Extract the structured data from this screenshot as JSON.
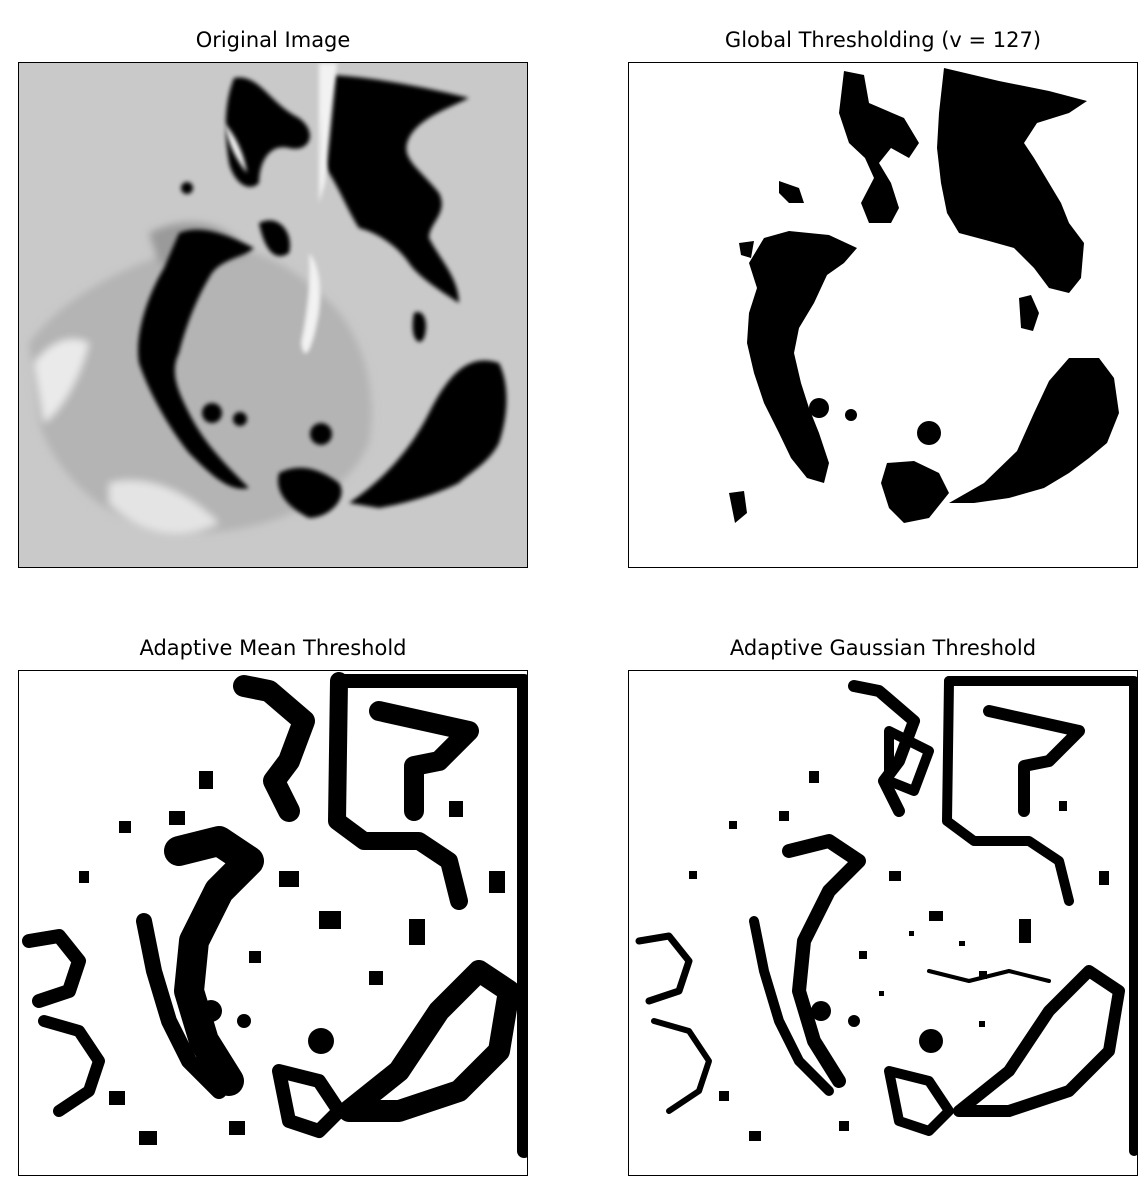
{
  "figure": {
    "panels": [
      {
        "title": "Original Image"
      },
      {
        "title": "Global Thresholding (v = 127)"
      },
      {
        "title": "Adaptive Mean Threshold"
      },
      {
        "title": "Adaptive Gaussian Threshold"
      }
    ]
  },
  "colors": {
    "frame": "#000000",
    "background": "#ffffff",
    "gray_light": "#c8c8c8",
    "gray_mid": "#a9a9a9",
    "ink": "#000000"
  }
}
